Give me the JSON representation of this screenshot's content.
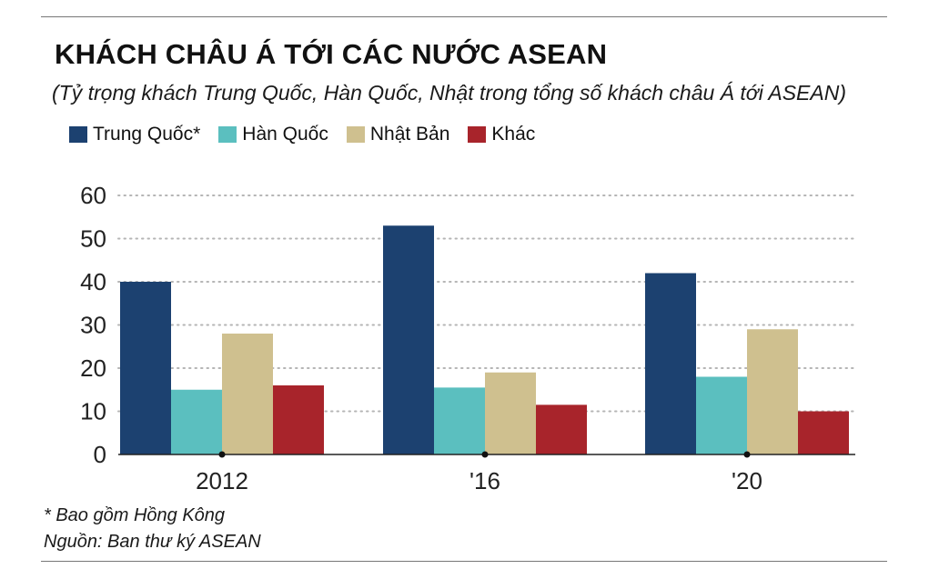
{
  "chart_data": {
    "type": "bar",
    "title": "KHÁCH CHÂU Á TỚI CÁC NƯỚC ASEAN",
    "subtitle": "(Tỷ trọng khách Trung Quốc, Hàn Quốc, Nhật trong tổng số khách châu Á tới ASEAN)",
    "categories": [
      "2012",
      "'16",
      "'20"
    ],
    "series": [
      {
        "name": "Trung Quốc*",
        "color": "#1c4170",
        "values": [
          40,
          53,
          42
        ]
      },
      {
        "name": "Hàn Quốc",
        "color": "#5bbfbf",
        "values": [
          15,
          15.5,
          18
        ]
      },
      {
        "name": "Nhật Bản",
        "color": "#cfc08f",
        "values": [
          28,
          19,
          29
        ]
      },
      {
        "name": "Khác",
        "color": "#a8242b",
        "values": [
          16,
          11.5,
          10
        ]
      }
    ],
    "ylim": [
      0,
      60
    ],
    "yticks": [
      "0",
      "10",
      "20",
      "30",
      "40",
      "50",
      "60"
    ],
    "grid": true,
    "legend_position": "top-left",
    "xlabel": "",
    "ylabel": ""
  },
  "footnotes": {
    "note": "* Bao gồm Hồng Kông",
    "source": "Nguồn: Ban thư ký ASEAN"
  }
}
